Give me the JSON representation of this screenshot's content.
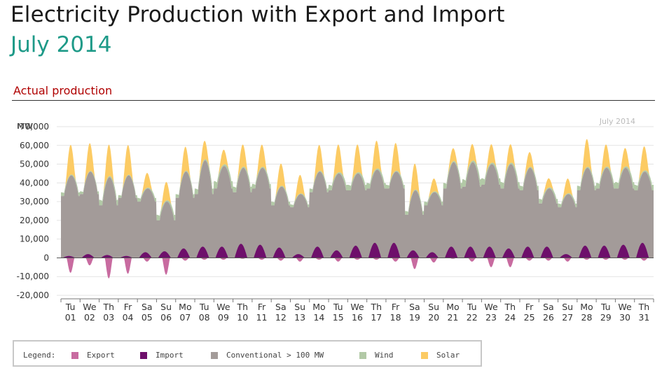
{
  "header": {
    "title": "Electricity Production with Export and Import",
    "subtitle": "July 2014",
    "section": "Actual production"
  },
  "legend": {
    "title": "Legend:",
    "items": [
      {
        "label": "Export",
        "color": "#c86ba0"
      },
      {
        "label": "Import",
        "color": "#6e0f6b"
      },
      {
        "label": "Conventional > 100 MW",
        "color": "#a39b99"
      },
      {
        "label": "Wind",
        "color": "#b2c9a6"
      },
      {
        "label": "Solar",
        "color": "#fccb64"
      }
    ]
  },
  "chart_data": {
    "type": "area",
    "title": "July 2014",
    "ylabel": "MW",
    "ylim": [
      -20000,
      70000
    ],
    "yticks": [
      -20000,
      -10000,
      0,
      10000,
      20000,
      30000,
      40000,
      50000,
      60000,
      70000
    ],
    "ytick_labels": [
      "-20,000",
      "-10,000",
      "0",
      "10,000",
      "20,000",
      "30,000",
      "40,000",
      "50,000",
      "60,000",
      "70,000"
    ],
    "grid": true,
    "x_weekday_labels": [
      "Tu",
      "We",
      "Th",
      "Fr",
      "Sa",
      "Su",
      "Mo",
      "Tu",
      "We",
      "Th",
      "Fr",
      "Sa",
      "Su",
      "Mo",
      "Tu",
      "We",
      "Th",
      "Fr",
      "Sa",
      "Su",
      "Mo",
      "Tu",
      "We",
      "Th",
      "Fr",
      "Sa",
      "Su",
      "Mo",
      "Tu",
      "We",
      "Th"
    ],
    "x_day_labels": [
      "01",
      "02",
      "03",
      "04",
      "05",
      "06",
      "07",
      "08",
      "09",
      "10",
      "11",
      "12",
      "13",
      "14",
      "15",
      "16",
      "17",
      "18",
      "19",
      "20",
      "21",
      "22",
      "23",
      "24",
      "25",
      "26",
      "27",
      "28",
      "29",
      "30",
      "31"
    ],
    "series": [
      {
        "name": "Conventional > 100 MW",
        "color": "#a39b99",
        "daily_night_min": [
          33000,
          34000,
          28000,
          32000,
          30000,
          20000,
          32000,
          34000,
          37000,
          35000,
          37000,
          28000,
          27000,
          35000,
          36000,
          36000,
          37000,
          37000,
          23000,
          28000,
          37000,
          38000,
          39000,
          37000,
          36000,
          29000,
          27000,
          36000,
          37000,
          37000,
          36000
        ],
        "daily_midday_max": [
          44000,
          46000,
          43000,
          44000,
          37000,
          30000,
          46000,
          52000,
          49000,
          48000,
          48000,
          38000,
          34000,
          46000,
          45000,
          45000,
          47000,
          46000,
          36000,
          35000,
          51000,
          51000,
          50000,
          50000,
          48000,
          37000,
          34000,
          48000,
          48000,
          48000,
          46000
        ]
      },
      {
        "name": "Wind",
        "color": "#b2c9a6",
        "daily_peak": [
          2000,
          1500,
          3000,
          1500,
          2000,
          3000,
          2000,
          3000,
          4000,
          3000,
          2500,
          2000,
          1500,
          2000,
          3000,
          3000,
          3000,
          2000,
          2000,
          2000,
          3000,
          4000,
          3500,
          3500,
          2500,
          2500,
          2000,
          2500,
          3000,
          3500,
          3000
        ]
      },
      {
        "name": "Solar",
        "color": "#fccb64",
        "daily_peak": [
          16000,
          15000,
          17000,
          16000,
          8000,
          10000,
          13000,
          10000,
          8000,
          12000,
          12000,
          12000,
          10000,
          14000,
          15000,
          15000,
          15000,
          15000,
          14000,
          7000,
          7000,
          9000,
          10000,
          10000,
          8000,
          5000,
          8000,
          15000,
          12000,
          10000,
          13000
        ]
      },
      {
        "name": "Import",
        "color": "#6e0f6b",
        "daily_peak": [
          1000,
          2000,
          1500,
          1000,
          3000,
          3500,
          5000,
          6000,
          6000,
          7500,
          7000,
          5500,
          2000,
          6000,
          4000,
          6500,
          8000,
          8000,
          4000,
          3000,
          6000,
          6000,
          6000,
          5000,
          6000,
          6000,
          2000,
          6500,
          6500,
          7000,
          8000
        ]
      },
      {
        "name": "Export",
        "color": "#c86ba0",
        "daily_peak": [
          8000,
          4000,
          11000,
          8500,
          2000,
          9000,
          1500,
          1000,
          1000,
          500,
          1000,
          1500,
          2000,
          1000,
          2000,
          1000,
          1000,
          2000,
          6000,
          2500,
          500,
          2000,
          5000,
          5000,
          1500,
          1500,
          2000,
          1000,
          1000,
          1000,
          1500
        ]
      }
    ]
  }
}
